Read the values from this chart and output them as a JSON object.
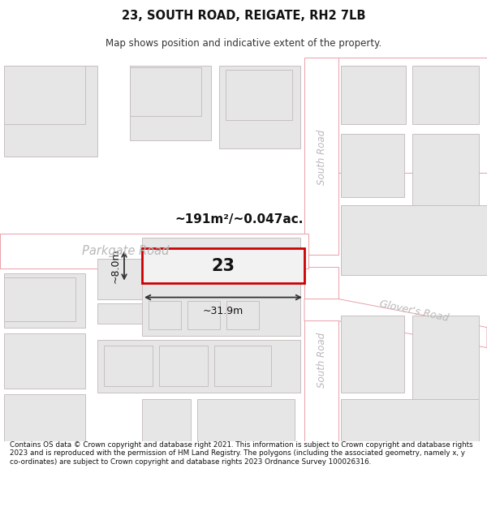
{
  "title": "23, SOUTH ROAD, REIGATE, RH2 7LB",
  "subtitle": "Map shows position and indicative extent of the property.",
  "footer": "Contains OS data © Crown copyright and database right 2021. This information is subject to Crown copyright and database rights 2023 and is reproduced with the permission of HM Land Registry. The polygons (including the associated geometry, namely x, y co-ordinates) are subject to Crown copyright and database rights 2023 Ordnance Survey 100026316.",
  "map_bg": "#f5f5f5",
  "road_fill": "#ffffff",
  "road_stroke": "#e8a0a8",
  "block_fill": "#e6e6e6",
  "block_stroke": "#c8c0c0",
  "highlight_stroke": "#cc0000",
  "highlight_fill": "#f2f2f2",
  "annotation_color": "#111111",
  "road_label_color": "#b0b0b0",
  "area_label": "~191m²/~0.047ac.",
  "width_label": "~31.9m",
  "height_label": "~8.0m",
  "parcel_label": "23",
  "road1_label": "Parkgate Road",
  "road2_label": "South Road",
  "road3_label": "South Road",
  "road4_label": "Glover's Road"
}
